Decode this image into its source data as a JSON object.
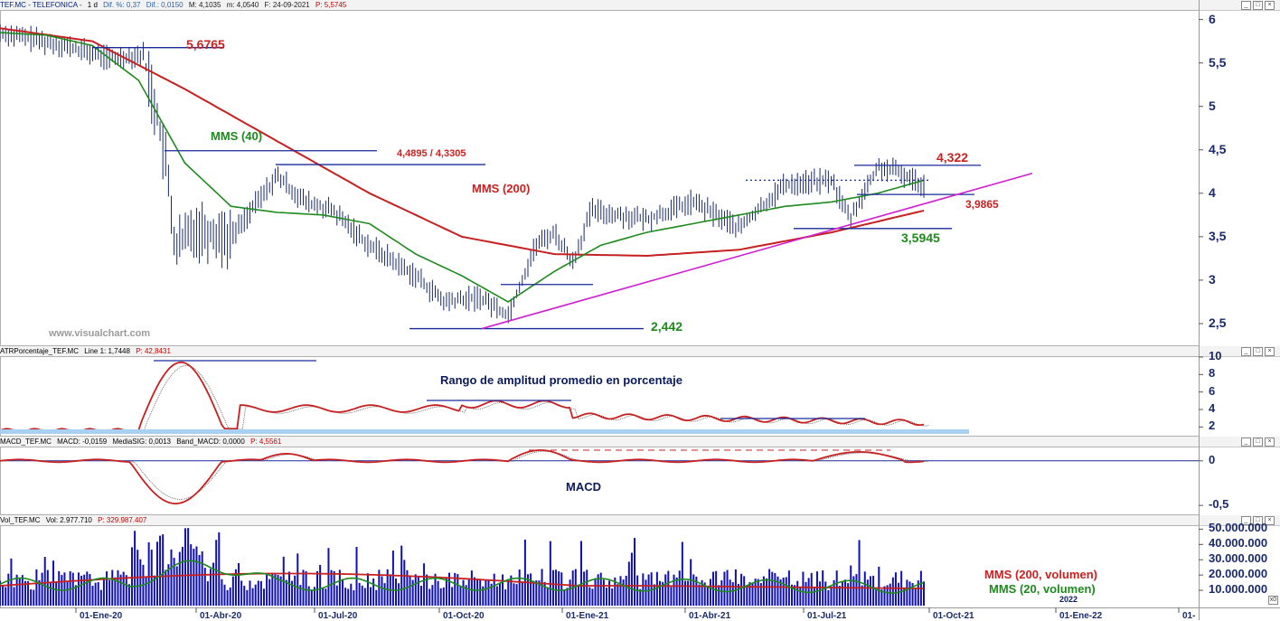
{
  "chart_data": [
    {
      "type": "line",
      "panel": "price",
      "header": {
        "symbol": "TEF.MC - TELEFONICA -",
        "period": "1 d",
        "dif_pct": "Dif. %: 0,37",
        "dif": "Dif.: 0,0150",
        "max": "M: 4,1035",
        "min": "m: 4,0540",
        "date": "F: 24-09-2021",
        "price": "P: 5,5745"
      },
      "y_ticks": [
        "6",
        "5,5",
        "5",
        "4,5",
        "4",
        "3,5",
        "3",
        "2,5"
      ],
      "ylim": [
        2.25,
        6.1
      ],
      "x_ticks": [
        "01-Ene-20",
        "01-Abr-20",
        "01-Jul-20",
        "01-Oct-20",
        "01-Ene-21",
        "01-Abr-21",
        "01-Jul-21",
        "01-Oct-21",
        "01-Ene-22",
        "01-"
      ],
      "series": [
        {
          "name": "MMS (40)",
          "color": "#1e8a1e",
          "x": [
            0,
            0.05,
            0.1,
            0.15,
            0.2,
            0.25,
            0.3,
            0.35,
            0.4,
            0.45,
            0.5,
            0.55,
            0.6,
            0.65,
            0.7,
            0.75,
            0.8,
            0.85,
            0.9,
            0.95,
            1.0
          ],
          "values": [
            5.85,
            5.82,
            5.7,
            5.3,
            4.35,
            3.85,
            3.78,
            3.75,
            3.65,
            3.3,
            3.05,
            2.75,
            3.1,
            3.4,
            3.55,
            3.65,
            3.75,
            3.85,
            3.9,
            4.0,
            4.15
          ]
        },
        {
          "name": "MMS (200)",
          "color": "#c62020",
          "x": [
            0,
            0.1,
            0.2,
            0.3,
            0.4,
            0.5,
            0.6,
            0.7,
            0.8,
            0.9,
            1.0
          ],
          "values": [
            5.9,
            5.75,
            5.2,
            4.6,
            4.0,
            3.5,
            3.3,
            3.28,
            3.35,
            3.55,
            3.8
          ]
        }
      ],
      "annotations": [
        "5,6765",
        "4,4895 / 4,3305",
        "4,322",
        "3,9865",
        "3,5945",
        "2,442"
      ],
      "watermark": "www.visualchart.com"
    },
    {
      "type": "line",
      "panel": "atr",
      "header": {
        "name": "ATRPorcentaje_TEF.MC",
        "line": "Line 1: 1,7448",
        "p": "P: 42,8431"
      },
      "y_ticks": [
        "10",
        "8",
        "6",
        "4",
        "2"
      ],
      "ylim": [
        1,
        10
      ],
      "label": "Rango de amplitud promedio en porcentaje"
    },
    {
      "type": "line",
      "panel": "macd",
      "header": {
        "name": "MACD_TEF.MC",
        "macd": "MACD: -0,0159",
        "sig": "MediaSIG: 0,0013",
        "band": "Band_MACD: 0,0000",
        "p": "P: 4,5561"
      },
      "y_ticks": [
        "0",
        "-0,5"
      ],
      "ylim": [
        -0.6,
        0.15
      ],
      "label": "MACD"
    },
    {
      "type": "bar",
      "panel": "volume",
      "header": {
        "name": "Vol_TEF.MC",
        "vol": "Vol: 2.977.710",
        "p": "P: 329.987.407"
      },
      "y_ticks": [
        "50.000.000",
        "40.000.000",
        "30.000.000",
        "20.000.000",
        "10.000.000"
      ],
      "ylim": [
        0,
        52000000
      ],
      "series": [
        {
          "name": "MMS (200, volumen)",
          "color": "#c62020"
        },
        {
          "name": "MMS (20, volumen)",
          "color": "#1e8a1e"
        }
      ],
      "extra_tick": "2022"
    }
  ],
  "ui": {
    "ctrl_min": "_",
    "ctrl_max": "□",
    "ctrl_close": "×",
    "corner_box": "x0"
  }
}
